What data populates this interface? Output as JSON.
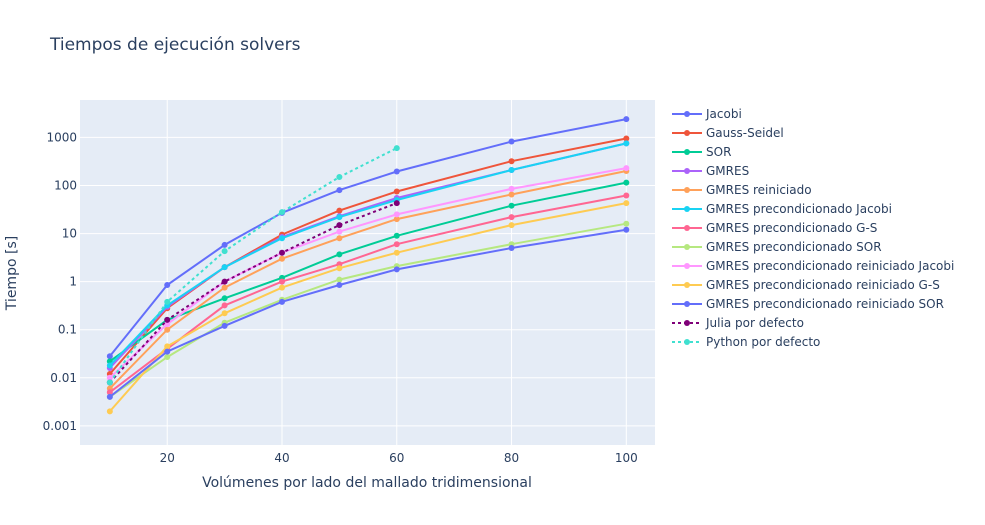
{
  "chart_data": {
    "type": "line",
    "title": "Tiempos de ejecución solvers",
    "xlabel": "Volúmenes por lado del mallado tridimensional",
    "ylabel": "Tiempo [s]",
    "xlim": [
      4.8,
      105
    ],
    "ylim": [
      0.0004,
      6000
    ],
    "yscale": "log",
    "grid": true,
    "legend_position": "right",
    "x_ticks": [
      20,
      40,
      60,
      80,
      100
    ],
    "x_tick_labels": [
      "20",
      "40",
      "60",
      "80",
      "100"
    ],
    "y_ticks": [
      0.001,
      0.01,
      0.1,
      1,
      10,
      100,
      1000
    ],
    "y_tick_labels": [
      "0.001",
      "0.01",
      "0.1",
      "1",
      "10",
      "100",
      "1000"
    ],
    "series": [
      {
        "name": "Jacobi",
        "color": "#636efa",
        "dash": "solid",
        "x": [
          10,
          20,
          30,
          40,
          50,
          60,
          80,
          100
        ],
        "y": [
          0.028,
          0.85,
          5.8,
          27,
          80,
          195,
          820,
          2400
        ]
      },
      {
        "name": "Gauss-Seidel",
        "color": "#EF553B",
        "dash": "solid",
        "x": [
          10,
          20,
          30,
          40,
          50,
          60,
          80,
          100
        ],
        "y": [
          0.012,
          0.28,
          2.0,
          9.5,
          30,
          75,
          320,
          950
        ]
      },
      {
        "name": "SOR",
        "color": "#00cc96",
        "dash": "solid",
        "x": [
          10,
          20,
          30,
          40,
          50,
          60,
          80,
          100
        ],
        "y": [
          0.022,
          0.16,
          0.45,
          1.2,
          3.7,
          9.0,
          38,
          115
        ]
      },
      {
        "name": "GMRES",
        "color": "#ab63fa",
        "dash": "solid",
        "x": [
          10,
          20,
          30,
          40,
          50,
          60,
          80,
          100
        ],
        "y": [
          0.016,
          0.3,
          2.0,
          8.5,
          23,
          55,
          210,
          750
        ]
      },
      {
        "name": "GMRES reiniciado",
        "color": "#FFA15A",
        "dash": "solid",
        "x": [
          10,
          20,
          30,
          40,
          50,
          60,
          80,
          100
        ],
        "y": [
          0.006,
          0.1,
          0.75,
          3.0,
          8.0,
          20,
          65,
          200
        ]
      },
      {
        "name": "GMRES precondicionado Jacobi",
        "color": "#19d3f3",
        "dash": "solid",
        "x": [
          10,
          20,
          30,
          40,
          50,
          60,
          80,
          100
        ],
        "y": [
          0.018,
          0.32,
          2.0,
          8.0,
          22,
          50,
          210,
          750
        ]
      },
      {
        "name": "GMRES precondicionado G-S",
        "color": "#FF6692",
        "dash": "solid",
        "x": [
          10,
          20,
          30,
          40,
          50,
          60,
          80,
          100
        ],
        "y": [
          0.005,
          0.04,
          0.32,
          1.0,
          2.3,
          6.0,
          22,
          62
        ]
      },
      {
        "name": "GMRES precondicionado SOR",
        "color": "#B6E880",
        "dash": "solid",
        "x": [
          10,
          20,
          30,
          40,
          50,
          60,
          80,
          100
        ],
        "y": [
          0.004,
          0.027,
          0.14,
          0.42,
          1.1,
          2.1,
          6.0,
          16
        ]
      },
      {
        "name": "GMRES precondicionado reiniciado Jacobi",
        "color": "#FF97FF",
        "dash": "solid",
        "x": [
          10,
          20,
          30,
          40,
          50,
          60,
          80,
          100
        ],
        "y": [
          0.01,
          0.13,
          1.0,
          4.0,
          11,
          25,
          85,
          230
        ]
      },
      {
        "name": "GMRES precondicionado reiniciado G-S",
        "color": "#FECB52",
        "dash": "solid",
        "x": [
          10,
          20,
          30,
          40,
          50,
          60,
          80,
          100
        ],
        "y": [
          0.002,
          0.045,
          0.22,
          0.75,
          1.9,
          4.0,
          15,
          43
        ]
      },
      {
        "name": "GMRES precondicionado reiniciado SOR",
        "color": "#636efa",
        "dash": "solid",
        "x": [
          10,
          20,
          30,
          40,
          50,
          60,
          80,
          100
        ],
        "y": [
          0.004,
          0.035,
          0.12,
          0.38,
          0.85,
          1.8,
          5.0,
          12
        ]
      },
      {
        "name": "Julia por defecto",
        "color": "#7f0078",
        "dash": "dot",
        "x": [
          10,
          20,
          30,
          40,
          50,
          60
        ],
        "y": [
          0.008,
          0.16,
          1.0,
          4.0,
          15,
          43
        ]
      },
      {
        "name": "Python por defecto",
        "color": "#40e0d0",
        "dash": "dot",
        "x": [
          10,
          20,
          30,
          40,
          50,
          60
        ],
        "y": [
          0.008,
          0.38,
          4.3,
          28,
          150,
          600
        ]
      }
    ]
  }
}
